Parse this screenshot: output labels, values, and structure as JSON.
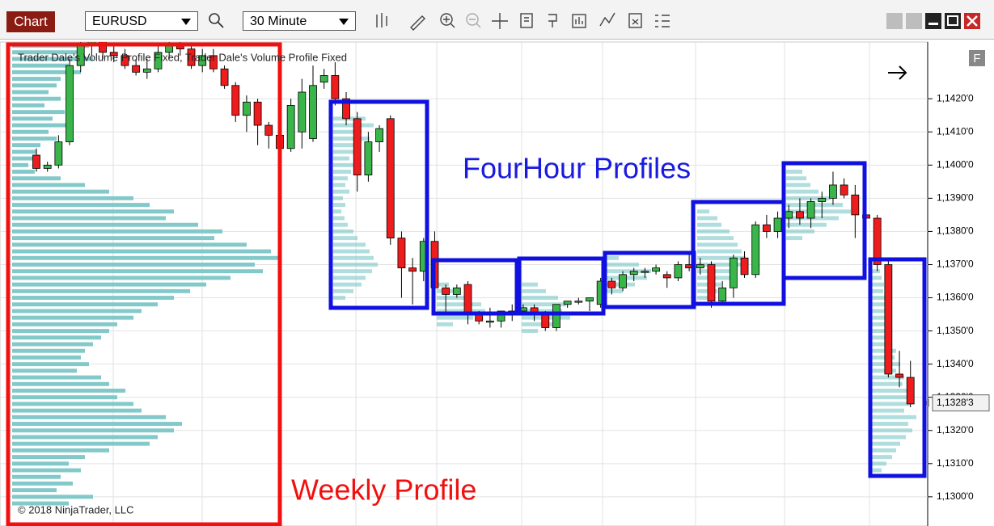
{
  "toolbar": {
    "tab": "Chart",
    "instrument": "EURUSD",
    "interval": "30 Minute"
  },
  "chart_data": {
    "type": "candlestick",
    "indicator_label": "Trader Dale's Volume Profile Fixed, Trader Dale's Volume Profile Fixed",
    "copyright": "© 2018 NinjaTrader, LLC",
    "corner_button": "F",
    "annotations": {
      "fourhour": "FourHour Profiles",
      "weekly": "Weekly Profile"
    },
    "up_color": "#39b54a",
    "down_color": "#ee1c1c",
    "profile_color": "#7cc6c6",
    "grid": true,
    "ylim": [
      1.12912,
      1.14371
    ],
    "yticks": [
      {
        "value": 1.142,
        "label": "1,1420'0"
      },
      {
        "value": 1.141,
        "label": "1,1410'0"
      },
      {
        "value": 1.14,
        "label": "1,1400'0"
      },
      {
        "value": 1.139,
        "label": "1,1390'0"
      },
      {
        "value": 1.138,
        "label": "1,1380'0"
      },
      {
        "value": 1.137,
        "label": "1,1370'0"
      },
      {
        "value": 1.136,
        "label": "1,1360'0"
      },
      {
        "value": 1.135,
        "label": "1,1350'0"
      },
      {
        "value": 1.134,
        "label": "1,1340'0"
      },
      {
        "value": 1.133,
        "label": "1,1330'0"
      },
      {
        "value": 1.132,
        "label": "1,1320'0"
      },
      {
        "value": 1.131,
        "label": "1,1310'0"
      },
      {
        "value": 1.13,
        "label": "1,1300'0"
      }
    ],
    "last_price": {
      "value": 1.13283,
      "label": "1,1328'3"
    },
    "open": [
      1.1403,
      1.1399,
      1.14,
      1.1407,
      1.143,
      1.1436,
      1.1438,
      1.1434,
      1.1433,
      1.143,
      1.1428,
      1.1429,
      1.1434,
      1.1436,
      1.1435,
      1.143,
      1.1433,
      1.1429,
      1.1424,
      1.1415,
      1.1419,
      1.1412,
      1.1409,
      1.1405,
      1.141,
      1.1408,
      1.1425,
      1.1427,
      1.142,
      1.1414,
      1.1397,
      1.1407,
      1.1414,
      1.1378,
      1.1369,
      1.1368,
      1.1377,
      1.1363,
      1.1361,
      1.1364,
      1.1355,
      1.1353,
      1.1353,
      1.1356,
      1.1356,
      1.1357,
      1.1355,
      1.1351,
      1.1358,
      1.1359,
      1.1359,
      1.1358,
      1.1365,
      1.1363,
      1.1367,
      1.1368,
      1.1368,
      1.1367,
      1.1366,
      1.137,
      1.1369,
      1.137,
      1.1359,
      1.1363,
      1.1372,
      1.1367,
      1.1382,
      1.138,
      1.1384,
      1.1386,
      1.1384,
      1.1389,
      1.139,
      1.1394,
      1.1391,
      1.1385,
      1.1384,
      1.137,
      1.1337,
      1.1336
    ],
    "high": [
      1.1405,
      1.1401,
      1.1409,
      1.1432,
      1.1438,
      1.144,
      1.144,
      1.1437,
      1.1435,
      1.1432,
      1.1432,
      1.1436,
      1.1438,
      1.1438,
      1.1437,
      1.1435,
      1.1435,
      1.143,
      1.1425,
      1.1421,
      1.142,
      1.1413,
      1.1416,
      1.142,
      1.1426,
      1.143,
      1.1429,
      1.1431,
      1.1422,
      1.1416,
      1.141,
      1.1412,
      1.1415,
      1.138,
      1.1372,
      1.1378,
      1.138,
      1.1364,
      1.1364,
      1.1365,
      1.1356,
      1.1357,
      1.1356,
      1.1358,
      1.1358,
      1.1358,
      1.1356,
      1.1358,
      1.1359,
      1.136,
      1.136,
      1.1366,
      1.1366,
      1.1368,
      1.1369,
      1.1369,
      1.137,
      1.1368,
      1.1371,
      1.1373,
      1.1372,
      1.1371,
      1.1365,
      1.1373,
      1.1374,
      1.1383,
      1.1385,
      1.1386,
      1.1388,
      1.139,
      1.139,
      1.1392,
      1.1398,
      1.1396,
      1.1394,
      1.1386,
      1.1385,
      1.1372,
      1.1344,
      1.1341
    ],
    "low": [
      1.1398,
      1.1398,
      1.1399,
      1.1406,
      1.1428,
      1.1433,
      1.1432,
      1.1431,
      1.1429,
      1.1427,
      1.1426,
      1.1428,
      1.1432,
      1.1433,
      1.1429,
      1.1428,
      1.1428,
      1.1423,
      1.1413,
      1.141,
      1.1406,
      1.1405,
      1.1403,
      1.1404,
      1.1405,
      1.1407,
      1.1423,
      1.1418,
      1.1412,
      1.1392,
      1.1395,
      1.1404,
      1.1376,
      1.136,
      1.1358,
      1.1365,
      1.1362,
      1.1355,
      1.136,
      1.1352,
      1.1352,
      1.1351,
      1.1351,
      1.1353,
      1.1355,
      1.1353,
      1.135,
      1.135,
      1.1357,
      1.1358,
      1.1356,
      1.1357,
      1.1361,
      1.1362,
      1.1365,
      1.1366,
      1.1367,
      1.1363,
      1.1365,
      1.1368,
      1.1367,
      1.1357,
      1.1358,
      1.136,
      1.1366,
      1.1366,
      1.1378,
      1.1378,
      1.1381,
      1.1382,
      1.1381,
      1.1384,
      1.1388,
      1.139,
      1.1378,
      1.1383,
      1.1368,
      1.1336,
      1.1333,
      1.1327
    ],
    "close": [
      1.1399,
      1.14,
      1.1407,
      1.143,
      1.1436,
      1.1438,
      1.1434,
      1.1433,
      1.143,
      1.1428,
      1.1429,
      1.1434,
      1.1436,
      1.1435,
      1.143,
      1.1433,
      1.1429,
      1.1424,
      1.1415,
      1.1419,
      1.1412,
      1.1409,
      1.1405,
      1.1418,
      1.1422,
      1.1424,
      1.1427,
      1.142,
      1.1414,
      1.1397,
      1.1407,
      1.1411,
      1.1378,
      1.1369,
      1.1368,
      1.1377,
      1.1363,
      1.1361,
      1.1363,
      1.1355,
      1.1353,
      1.1353,
      1.1356,
      1.1356,
      1.1357,
      1.1355,
      1.1351,
      1.1358,
      1.1359,
      1.1359,
      1.136,
      1.1365,
      1.1363,
      1.1367,
      1.1368,
      1.1368,
      1.1369,
      1.1366,
      1.137,
      1.1369,
      1.137,
      1.1359,
      1.1363,
      1.1372,
      1.1367,
      1.1382,
      1.138,
      1.1384,
      1.1386,
      1.1384,
      1.1389,
      1.139,
      1.1394,
      1.1391,
      1.1385,
      1.1384,
      1.137,
      1.1337,
      1.1336,
      1.1328
    ],
    "profiles": [
      {
        "top": 1.1436,
        "step": 0.0002,
        "volumes": [
          95,
          80,
          100,
          70,
          85,
          60,
          55,
          45,
          60,
          40,
          65,
          50,
          70,
          45,
          55,
          35,
          30,
          25,
          20,
          28,
          60,
          90,
          120,
          150,
          170,
          200,
          190,
          230,
          260,
          250,
          290,
          320,
          330,
          300,
          310,
          270,
          240,
          220,
          200,
          180,
          160,
          150,
          130,
          120,
          110,
          100,
          90,
          85,
          95,
          80,
          110,
          120,
          140,
          130,
          150,
          160,
          190,
          210,
          200,
          180,
          170,
          120,
          90,
          70,
          85,
          60,
          75,
          55,
          100,
          70
        ]
      },
      {
        "top": 1.1414,
        "step": 0.0002,
        "volumes": [
          40,
          50,
          35,
          45,
          30,
          25,
          20,
          30,
          22,
          18,
          15,
          20,
          12,
          15,
          10,
          14,
          18,
          25,
          30,
          40,
          45,
          50,
          55,
          48,
          40,
          35,
          25,
          15
        ]
      },
      {
        "top": 1.1364,
        "step": 0.0002,
        "volumes": [
          15,
          25,
          40,
          55,
          60,
          45,
          20
        ]
      },
      {
        "top": 1.1364,
        "step": 0.0002,
        "volumes": [
          20,
          30,
          45,
          55,
          50,
          60,
          40,
          20
        ]
      },
      {
        "top": 1.1372,
        "step": 0.0002,
        "volumes": [
          15,
          40,
          55,
          50,
          35,
          20
        ]
      },
      {
        "top": 1.1386,
        "step": 0.0002,
        "volumes": [
          15,
          25,
          30,
          40,
          45,
          50,
          55,
          60,
          55,
          45,
          40,
          30,
          25,
          15
        ]
      },
      {
        "top": 1.1398,
        "step": 0.0002,
        "volumes": [
          20,
          25,
          30,
          40,
          55,
          70,
          80,
          65,
          50,
          35,
          20
        ]
      },
      {
        "top": 1.1368,
        "step": 0.0002,
        "volumes": [
          10,
          12,
          15,
          14,
          18,
          20,
          16,
          22,
          25,
          20,
          18,
          25,
          30,
          28,
          35,
          30,
          40,
          38,
          45,
          50,
          48,
          40,
          55,
          45,
          50,
          42,
          35,
          30,
          25,
          18,
          12
        ]
      }
    ]
  }
}
